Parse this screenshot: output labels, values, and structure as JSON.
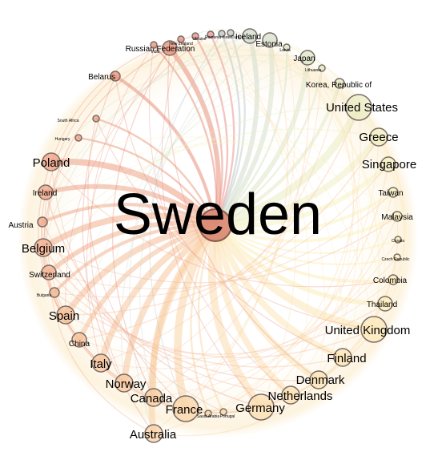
{
  "hub": {
    "label": "Sweden"
  },
  "nodes": [
    {
      "id": "russian-federation",
      "label": "Russian Federation",
      "tone": "#e8907a",
      "weight": 3
    },
    {
      "id": "belarus",
      "label": "Belarus",
      "tone": "#e8907a",
      "weight": 2
    },
    {
      "id": "south-africa",
      "label": "South Africa",
      "tone": "#ec9c82",
      "weight": 1
    },
    {
      "id": "hungary",
      "label": "Hungary",
      "tone": "#ec9c82",
      "weight": 1
    },
    {
      "id": "poland",
      "label": "Poland",
      "tone": "#ee9f84",
      "weight": 4
    },
    {
      "id": "ireland",
      "label": "Ireland",
      "tone": "#efa386",
      "weight": 3
    },
    {
      "id": "austria",
      "label": "Austria",
      "tone": "#f0a789",
      "weight": 2
    },
    {
      "id": "belgium",
      "label": "Belgium",
      "tone": "#f2ae8d",
      "weight": 4
    },
    {
      "id": "switzerland",
      "label": "Switzerland",
      "tone": "#f2b190",
      "weight": 3
    },
    {
      "id": "bulgaria",
      "label": "Bulgaria",
      "tone": "#f3b592",
      "weight": 2
    },
    {
      "id": "spain",
      "label": "Spain",
      "tone": "#f5bd97",
      "weight": 4
    },
    {
      "id": "china",
      "label": "China",
      "tone": "#f6c19a",
      "weight": 3
    },
    {
      "id": "italy",
      "label": "Italy",
      "tone": "#f6c49c",
      "weight": 4
    },
    {
      "id": "norway",
      "label": "Norway",
      "tone": "#f7c79e",
      "weight": 4
    },
    {
      "id": "canada",
      "label": "Canada",
      "tone": "#f8cda2",
      "weight": 4
    },
    {
      "id": "australia",
      "label": "Australia",
      "tone": "#f9d0a5",
      "weight": 4
    },
    {
      "id": "france",
      "label": "France",
      "tone": "#f9d4a7",
      "weight": 5
    },
    {
      "id": "saudi-arabia",
      "label": "Saudi Arabia",
      "tone": "#fad9ac",
      "weight": 1
    },
    {
      "id": "portugal",
      "label": "Portugal",
      "tone": "#fadbae",
      "weight": 1
    },
    {
      "id": "germany",
      "label": "Germany",
      "tone": "#fbddb0",
      "weight": 5
    },
    {
      "id": "netherlands",
      "label": "Netherlands",
      "tone": "#fbe0b2",
      "weight": 4
    },
    {
      "id": "denmark",
      "label": "Denmark",
      "tone": "#fbe3b4",
      "weight": 4
    },
    {
      "id": "finland",
      "label": "Finland",
      "tone": "#fce6b6",
      "weight": 4
    },
    {
      "id": "united-kingdom",
      "label": "United Kingdom",
      "tone": "#fce8b8",
      "weight": 5
    },
    {
      "id": "thailand",
      "label": "Thailand",
      "tone": "#fcecbb",
      "weight": 3
    },
    {
      "id": "colombia",
      "label": "Colombia",
      "tone": "#fcefbe",
      "weight": 2
    },
    {
      "id": "czech-republic",
      "label": "Czech Republic",
      "tone": "#fcf1c0",
      "weight": 1
    },
    {
      "id": "croatia",
      "label": "Croatia",
      "tone": "#fcf3c2",
      "weight": 1
    },
    {
      "id": "malaysia",
      "label": "Malaysia",
      "tone": "#fbf4c3",
      "weight": 2
    },
    {
      "id": "taiwan",
      "label": "Taiwan",
      "tone": "#f9f4c4",
      "weight": 2
    },
    {
      "id": "singapore",
      "label": "Singapore",
      "tone": "#f5f2c4",
      "weight": 3
    },
    {
      "id": "greece",
      "label": "Greece",
      "tone": "#f0efc4",
      "weight": 4
    },
    {
      "id": "united-states",
      "label": "United States",
      "tone": "#ebecc3",
      "weight": 5
    },
    {
      "id": "korea",
      "label": "Korea, Republic of",
      "tone": "#e6eac4",
      "weight": 2
    },
    {
      "id": "lithuania",
      "label": "Lithuania",
      "tone": "#e2e8c6",
      "weight": 1
    },
    {
      "id": "japan",
      "label": "Japan",
      "tone": "#dfe6c8",
      "weight": 3
    },
    {
      "id": "latvia",
      "label": "Latvia",
      "tone": "#dbe3ca",
      "weight": 1
    },
    {
      "id": "estonia",
      "label": "Estonia",
      "tone": "#d7e0cc",
      "weight": 3
    },
    {
      "id": "iceland",
      "label": "Iceland",
      "tone": "#d2dccc",
      "weight": 3
    },
    {
      "id": "turkey",
      "label": "Turkey",
      "tone": "#c2d0cc",
      "weight": 1
    },
    {
      "id": "israel",
      "label": "Israel",
      "tone": "#b9c7c6",
      "weight": 1
    },
    {
      "id": "romania",
      "label": "Romania",
      "tone": "#e89590",
      "weight": 1
    },
    {
      "id": "ukraine",
      "label": "Ukraine",
      "tone": "#e8928a",
      "weight": 1
    },
    {
      "id": "new-zealand",
      "label": "New Zealand",
      "tone": "#e99283",
      "weight": 1
    },
    {
      "id": "india",
      "label": "India",
      "tone": "#e9917e",
      "weight": 1
    }
  ]
}
